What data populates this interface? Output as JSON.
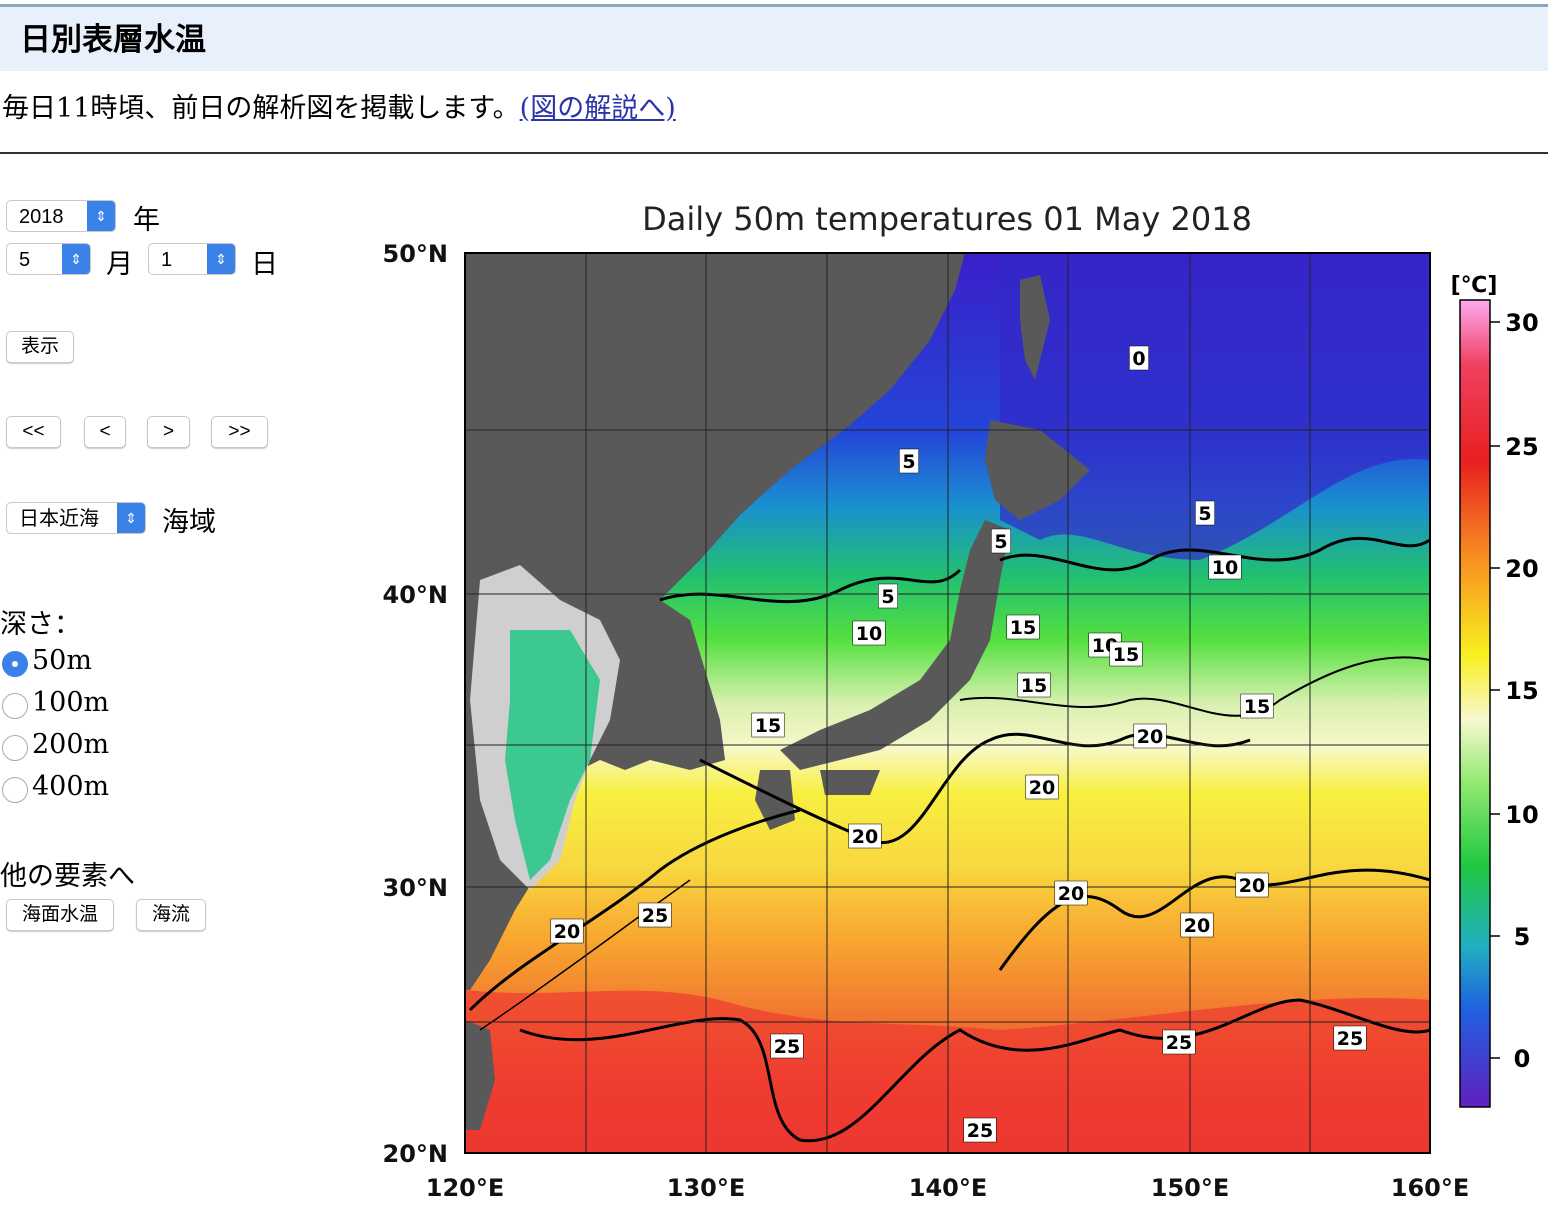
{
  "header": {
    "title": "日別表層水温"
  },
  "intro": {
    "text": "毎日11時頃、前日の解析図を掲載します。",
    "link": "(図の解説へ)"
  },
  "controls": {
    "year": {
      "value": "2018",
      "unit": "年"
    },
    "month": {
      "value": "5",
      "unit": "月"
    },
    "day": {
      "value": "1",
      "unit": "日"
    },
    "show_button": "表示",
    "nav_buttons": [
      "<<",
      "<",
      ">",
      ">>"
    ],
    "region": {
      "value": "日本近海",
      "unit": "海域"
    },
    "depth_label": "深さ：",
    "depth_options": [
      "50m",
      "100m",
      "200m",
      "400m"
    ],
    "other_label": "他の要素へ",
    "other_buttons": [
      "海面水温",
      "海流"
    ]
  },
  "map": {
    "title": "Daily 50m temperatures 01 May 2018",
    "lat_labels": [
      "50°N",
      "40°N",
      "30°N",
      "20°N"
    ],
    "lon_labels": [
      "120°E",
      "130°E",
      "140°E",
      "150°E",
      "160°E"
    ],
    "colorbar_unit": "[℃]",
    "colorbar_labels": [
      "30",
      "25",
      "20",
      "15",
      "10",
      "5",
      "0"
    ],
    "contour_labels": [
      "0",
      "5",
      "5",
      "5",
      "5",
      "10",
      "10",
      "15",
      "10",
      "15",
      "15",
      "15",
      "15",
      "20",
      "20",
      "20",
      "20",
      "20",
      "20",
      "25",
      "20",
      "25",
      "25",
      "25",
      "25"
    ]
  }
}
